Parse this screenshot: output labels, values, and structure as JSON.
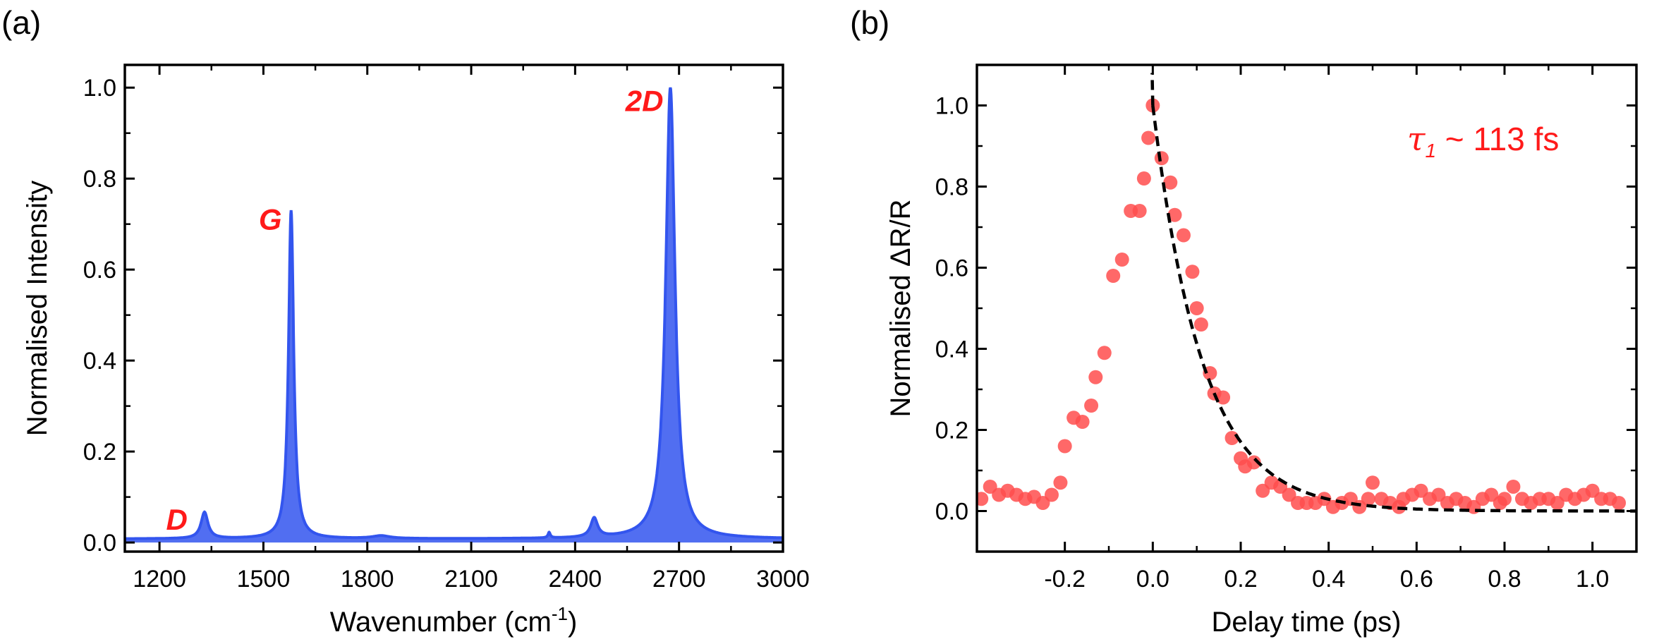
{
  "chart_data": [
    {
      "panel": "(a)",
      "type": "area",
      "xlabel": "Wavenumber (cm",
      "xlabel_sup": "-1",
      "xlabel_end": ")",
      "ylabel": "Normalised Intensity",
      "xlim": [
        1100,
        3000
      ],
      "ylim": [
        -0.02,
        1.05
      ],
      "xticks": [
        1200,
        1500,
        1800,
        2100,
        2400,
        2700,
        3000
      ],
      "xtick_labels": [
        "1200",
        "1500",
        "1800",
        "2100",
        "2400",
        "2700",
        "3000"
      ],
      "yticks": [
        0.0,
        0.2,
        0.4,
        0.6,
        0.8,
        1.0
      ],
      "ytick_labels": [
        "0.0",
        "0.2",
        "0.4",
        "0.6",
        "0.8",
        "1.0"
      ],
      "color": "#3355ee",
      "baseline": 0.008,
      "peaks": [
        {
          "center": 1330,
          "height": 0.058,
          "width": 12
        },
        {
          "center": 1580,
          "height": 0.722,
          "width": 9
        },
        {
          "center": 1840,
          "height": 0.006,
          "width": 30
        },
        {
          "center": 2325,
          "height": 0.012,
          "width": 4
        },
        {
          "center": 2455,
          "height": 0.042,
          "width": 12
        },
        {
          "center": 2675,
          "height": 0.992,
          "width": 16
        }
      ],
      "peak_labels": [
        {
          "text": "D",
          "x": 1250,
          "y": 0.05
        },
        {
          "text": "G",
          "x": 1520,
          "y": 0.71
        },
        {
          "text": "2D",
          "x": 2600,
          "y": 0.97
        }
      ]
    },
    {
      "panel": "(b)",
      "type": "scatter",
      "xlabel": "Delay time (ps)",
      "ylabel": "Normalised ΔR/R",
      "xlim": [
        -0.4,
        1.1
      ],
      "ylim": [
        -0.1,
        1.1
      ],
      "xticks": [
        -0.2,
        0.0,
        0.2,
        0.4,
        0.6,
        0.8,
        1.0
      ],
      "xtick_labels": [
        "-0.2",
        "0.0",
        "0.2",
        "0.4",
        "0.6",
        "0.8",
        "1.0"
      ],
      "yticks": [
        0.0,
        0.2,
        0.4,
        0.6,
        0.8,
        1.0
      ],
      "ytick_labels": [
        "0.0",
        "0.2",
        "0.4",
        "0.6",
        "0.8",
        "1.0"
      ],
      "marker_color": "#ff4d4d",
      "fit_color": "#000000",
      "fit": {
        "type": "exponential decay",
        "tau_ps": 0.113,
        "x_start": 0.0,
        "x_end": 1.1
      },
      "annotation": {
        "symbol": "τ",
        "subscript": "1",
        "text": " ~ 113 fs"
      },
      "x": [
        -0.39,
        -0.37,
        -0.35,
        -0.33,
        -0.31,
        -0.29,
        -0.27,
        -0.25,
        -0.23,
        -0.21,
        -0.2,
        -0.18,
        -0.16,
        -0.14,
        -0.13,
        -0.11,
        -0.09,
        -0.07,
        -0.05,
        -0.03,
        -0.02,
        -0.01,
        0.0,
        0.02,
        0.04,
        0.05,
        0.07,
        0.09,
        0.1,
        0.11,
        0.13,
        0.14,
        0.16,
        0.18,
        0.2,
        0.21,
        0.23,
        0.25,
        0.27,
        0.29,
        0.31,
        0.33,
        0.35,
        0.37,
        0.39,
        0.41,
        0.43,
        0.45,
        0.47,
        0.49,
        0.5,
        0.52,
        0.54,
        0.56,
        0.57,
        0.59,
        0.61,
        0.63,
        0.65,
        0.67,
        0.69,
        0.71,
        0.73,
        0.75,
        0.77,
        0.79,
        0.8,
        0.82,
        0.84,
        0.86,
        0.88,
        0.9,
        0.92,
        0.94,
        0.96,
        0.98,
        1.0,
        1.02,
        1.04,
        1.06
      ],
      "y": [
        0.03,
        0.06,
        0.04,
        0.05,
        0.04,
        0.03,
        0.035,
        0.02,
        0.04,
        0.07,
        0.16,
        0.23,
        0.22,
        0.26,
        0.33,
        0.39,
        0.58,
        0.62,
        0.74,
        0.74,
        0.82,
        0.92,
        1.0,
        0.87,
        0.81,
        0.73,
        0.68,
        0.59,
        0.5,
        0.46,
        0.34,
        0.29,
        0.28,
        0.18,
        0.13,
        0.11,
        0.12,
        0.05,
        0.07,
        0.06,
        0.04,
        0.02,
        0.02,
        0.02,
        0.03,
        0.01,
        0.02,
        0.03,
        0.01,
        0.03,
        0.07,
        0.03,
        0.02,
        0.01,
        0.03,
        0.04,
        0.05,
        0.03,
        0.04,
        0.02,
        0.03,
        0.02,
        0.01,
        0.03,
        0.04,
        0.02,
        0.03,
        0.06,
        0.03,
        0.02,
        0.03,
        0.03,
        0.02,
        0.04,
        0.03,
        0.04,
        0.05,
        0.03,
        0.03,
        0.02
      ]
    }
  ]
}
